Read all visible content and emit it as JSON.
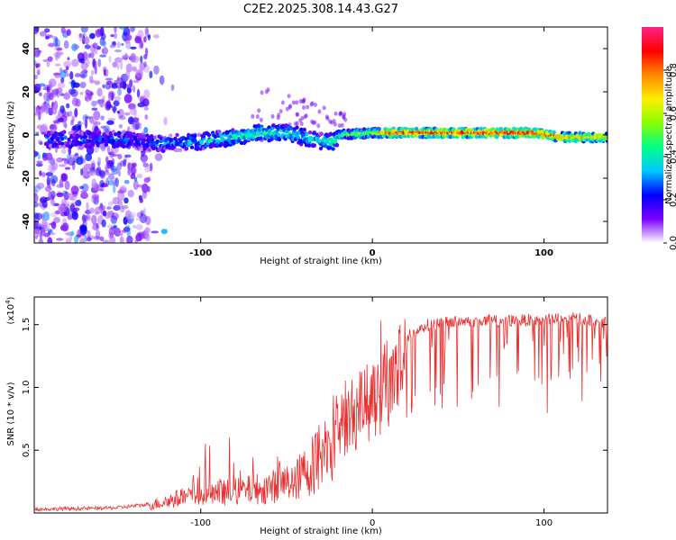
{
  "figure_title": "C2E2.2025.308.14.43.G27",
  "chart_data": [
    {
      "type": "heatmap",
      "title": "C2E2.2025.308.14.43.G27",
      "xlabel": "Height of straight line (km)",
      "ylabel": "Frequency (Hz)",
      "xlim": [
        -197,
        137
      ],
      "ylim": [
        -50,
        50
      ],
      "xticks": [
        -100,
        0,
        100
      ],
      "xtick_labels": [
        "-100",
        "0",
        "100"
      ],
      "yticks": [
        -40,
        -20,
        0,
        20,
        40
      ],
      "ytick_labels": [
        "-40",
        "-20",
        "0",
        "20",
        "40"
      ],
      "colorbar": {
        "label": "Normalized spectral amplitude",
        "range": [
          0,
          1
        ],
        "ticks": [
          0.0,
          0.2,
          0.4,
          0.6,
          0.8
        ],
        "tick_labels": [
          "0.0",
          "0.2",
          "0.4",
          "0.6",
          "0.8"
        ],
        "colormap": [
          "#ffffff",
          "#7a00ff",
          "#0000ff",
          "#00c8ff",
          "#00ff88",
          "#88ff00",
          "#ffee00",
          "#ff8800",
          "#ff0000",
          "#ff2288"
        ]
      },
      "features": {
        "noise_region_x": [
          -197,
          -130
        ],
        "signal_band_center_hz": [
          [
            -180,
            -2
          ],
          [
            -150,
            -2
          ],
          [
            -125,
            -4
          ],
          [
            -100,
            -3
          ],
          [
            -80,
            -1
          ],
          [
            -65,
            1
          ],
          [
            -50,
            1
          ],
          [
            -40,
            -1
          ],
          [
            -30,
            -3
          ],
          [
            -22,
            -3
          ],
          [
            -20,
            0
          ],
          [
            0,
            1
          ],
          [
            20,
            1
          ],
          [
            60,
            1
          ],
          [
            95,
            1
          ],
          [
            110,
            -1
          ],
          [
            137,
            -1
          ]
        ],
        "amplitude_along_x": [
          [
            -180,
            0.25
          ],
          [
            -130,
            0.25
          ],
          [
            -100,
            0.35
          ],
          [
            -80,
            0.42
          ],
          [
            -50,
            0.42
          ],
          [
            -30,
            0.38
          ],
          [
            -15,
            0.5
          ],
          [
            0,
            0.6
          ],
          [
            10,
            0.85
          ],
          [
            60,
            0.9
          ],
          [
            95,
            0.9
          ],
          [
            110,
            0.75
          ],
          [
            137,
            0.7
          ]
        ]
      }
    },
    {
      "type": "line",
      "xlabel": "Height of straight line (km)",
      "ylabel": "SNR (10 * v/v)",
      "y_multiplier_label": "(x10",
      "y_multiplier_exponent": "4",
      "xlim": [
        -197,
        137
      ],
      "ylim": [
        0,
        1.72
      ],
      "xticks": [
        -100,
        0,
        100
      ],
      "xtick_labels": [
        "-100",
        "0",
        "100"
      ],
      "yticks": [
        0.5,
        1.0,
        1.5
      ],
      "ytick_labels": [
        "0.5",
        "1.0",
        "1.5"
      ],
      "line_color": "#e83030",
      "series": [
        {
          "name": "SNR",
          "envelope_x": [
            -197,
            -150,
            -130,
            -115,
            -100,
            -80,
            -60,
            -45,
            -35,
            -25,
            -15,
            -5,
            0,
            10,
            20,
            30,
            40,
            60,
            80,
            100,
            120,
            137
          ],
          "envelope_y": [
            0.03,
            0.04,
            0.07,
            0.13,
            0.17,
            0.2,
            0.24,
            0.3,
            0.45,
            0.65,
            0.82,
            0.97,
            1.05,
            1.2,
            1.38,
            1.47,
            1.5,
            1.51,
            1.51,
            1.52,
            1.53,
            1.5
          ]
        }
      ]
    }
  ]
}
